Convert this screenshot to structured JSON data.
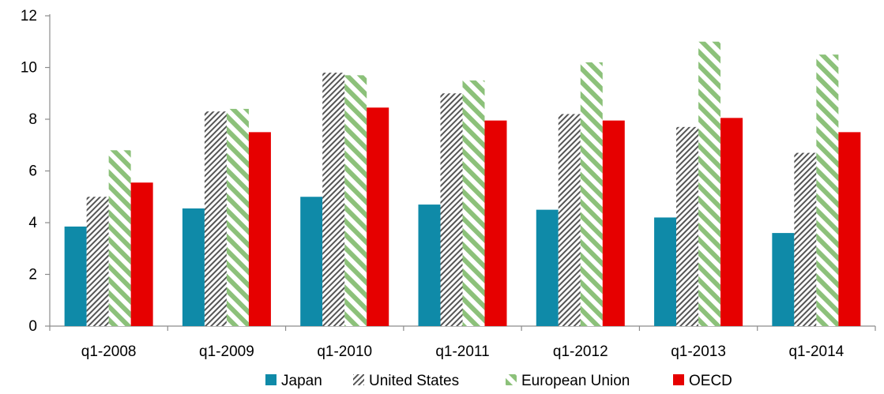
{
  "chart_data": {
    "type": "bar",
    "title": "",
    "xlabel": "",
    "ylabel": "",
    "categories": [
      "q1-2008",
      "q1-2009",
      "q1-2010",
      "q1-2011",
      "q1-2012",
      "q1-2013",
      "q1-2014"
    ],
    "ylim": [
      0,
      12
    ],
    "yticks": [
      0,
      2,
      4,
      6,
      8,
      10,
      12
    ],
    "grid": false,
    "legend_position": "bottom",
    "series": [
      {
        "name": "Japan",
        "values": [
          3.85,
          4.55,
          5.0,
          4.7,
          4.5,
          4.2,
          3.6
        ],
        "color": "#0f8aa8",
        "pattern": "solid"
      },
      {
        "name": "United States",
        "values": [
          5.0,
          8.3,
          9.8,
          9.0,
          8.2,
          7.7,
          6.7
        ],
        "color": "#555555",
        "pattern": "dense-diagonal-hatch"
      },
      {
        "name": "European Union",
        "values": [
          6.8,
          8.4,
          9.7,
          9.5,
          10.2,
          11.0,
          10.5
        ],
        "color": "#8cc17a",
        "pattern": "wide-diagonal-stripe"
      },
      {
        "name": "OECD",
        "values": [
          5.55,
          7.5,
          8.45,
          7.95,
          7.95,
          8.05,
          7.5
        ],
        "color": "#e60000",
        "pattern": "solid"
      }
    ]
  }
}
